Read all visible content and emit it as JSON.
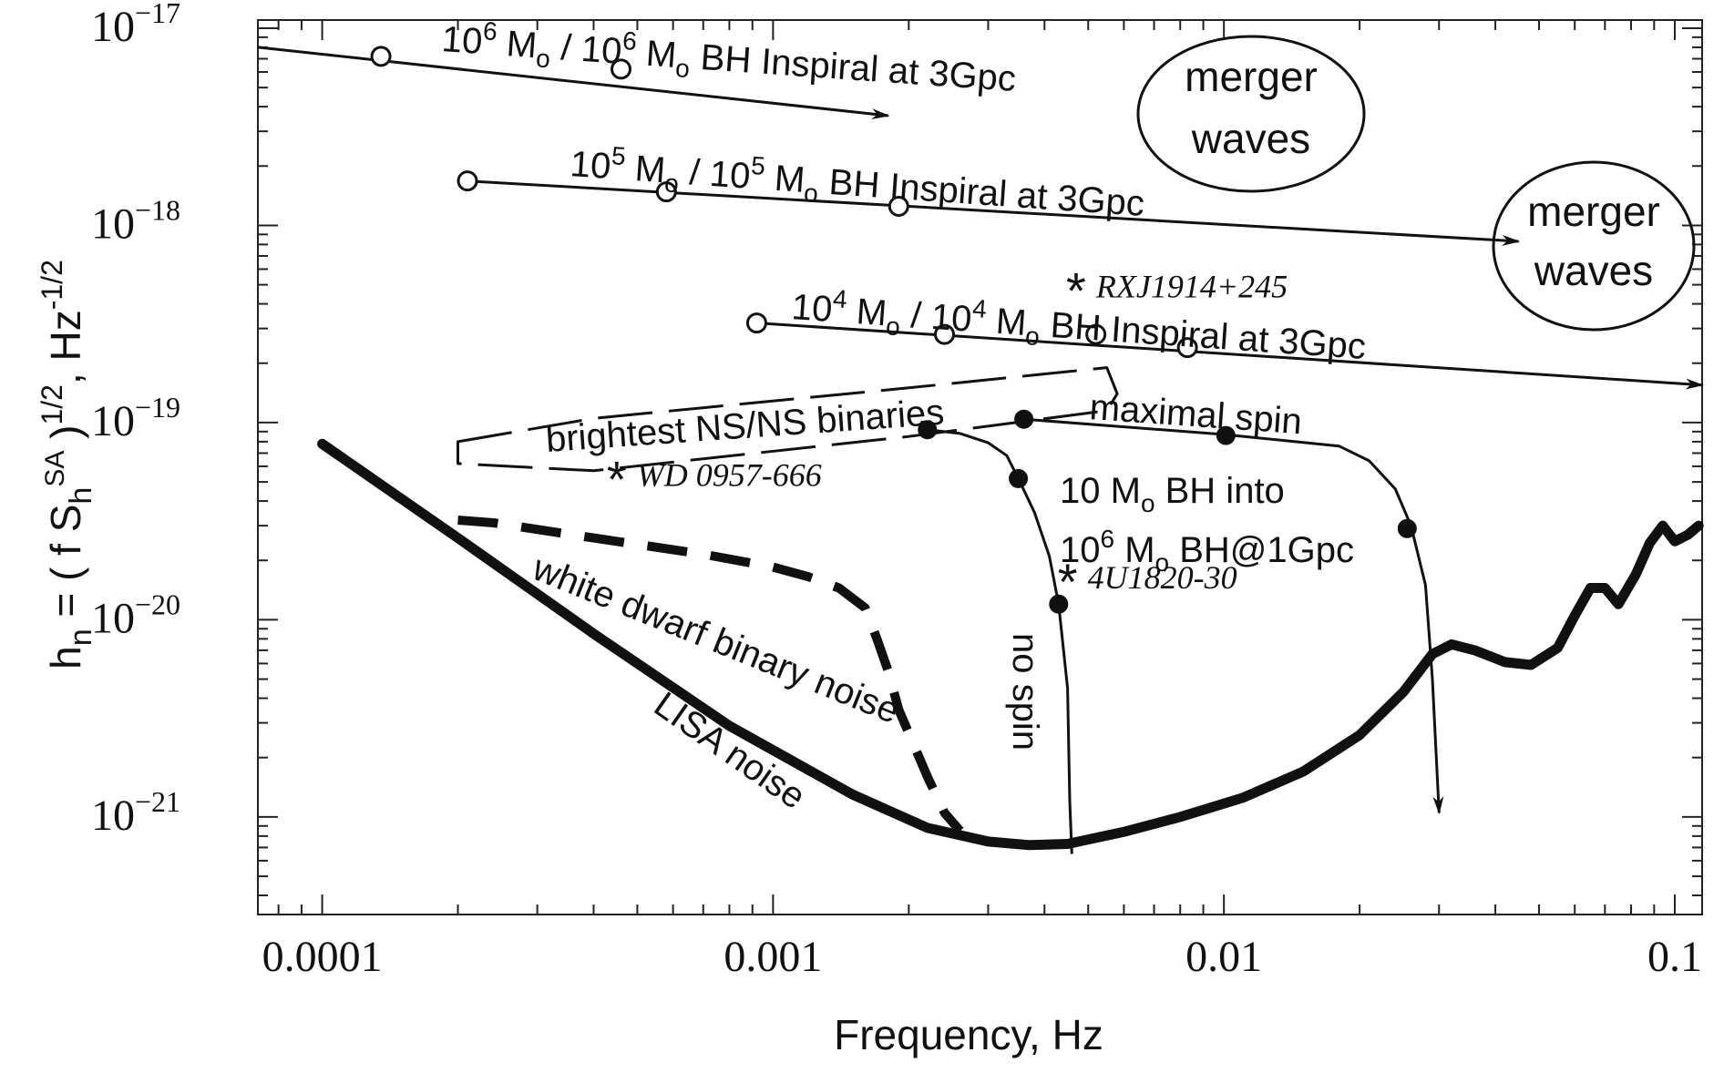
{
  "chart_data": {
    "type": "line",
    "xlabel": "Frequency, Hz",
    "ylabel": "h_n = ( f S_h^SA )^1/2 , Hz^-1/2",
    "ylabel_parts": {
      "main": "h",
      "sub": "n",
      "eq": " = ( f S",
      "s_sub": "h",
      "s_sup": "SA",
      "close": " )",
      "exp": "1/2",
      "comma": ",  Hz",
      "unit_exp": "-1/2"
    },
    "x_scale": "log",
    "y_scale": "log",
    "xlim": [
      7.2e-05,
      0.115
    ],
    "ylim": [
      3.2e-22,
      1.1e-17
    ],
    "x_ticks": [
      {
        "value": 0.0001,
        "label": "0.0001"
      },
      {
        "value": 0.001,
        "label": "0.001"
      },
      {
        "value": 0.01,
        "label": "0.01"
      },
      {
        "value": 0.1,
        "label": "0.1"
      }
    ],
    "y_ticks": [
      {
        "value": 1e-17,
        "base": "10",
        "exp": "−17"
      },
      {
        "value": 1e-18,
        "base": "10",
        "exp": "−18"
      },
      {
        "value": 1e-19,
        "base": "10",
        "exp": "−19"
      },
      {
        "value": 1e-20,
        "base": "10",
        "exp": "−20"
      },
      {
        "value": 1e-21,
        "base": "10",
        "exp": "−21"
      }
    ],
    "grid": false,
    "series": [
      {
        "name": "LISA noise",
        "style": "thick",
        "points": [
          [
            0.0001,
            7.8e-20
          ],
          [
            0.0002,
            2.6e-20
          ],
          [
            0.0004,
            8.5e-21
          ],
          [
            0.0008,
            2.9e-21
          ],
          [
            0.0015,
            1.3e-21
          ],
          [
            0.0022,
            8.8e-22
          ],
          [
            0.003,
            7.5e-22
          ],
          [
            0.0037,
            7.2e-22
          ],
          [
            0.0045,
            7.3e-22
          ],
          [
            0.006,
            8.4e-22
          ],
          [
            0.008,
            1e-21
          ],
          [
            0.011,
            1.25e-21
          ],
          [
            0.015,
            1.7e-21
          ],
          [
            0.02,
            2.6e-21
          ],
          [
            0.025,
            4.3e-21
          ],
          [
            0.029,
            6.7e-21
          ],
          [
            0.032,
            7.5e-21
          ],
          [
            0.036,
            7e-21
          ],
          [
            0.042,
            6.1e-21
          ],
          [
            0.048,
            5.9e-21
          ],
          [
            0.055,
            7.2e-21
          ],
          [
            0.06,
            1.05e-20
          ],
          [
            0.065,
            1.45e-20
          ],
          [
            0.07,
            1.45e-20
          ],
          [
            0.075,
            1.2e-20
          ],
          [
            0.082,
            1.7e-20
          ],
          [
            0.088,
            2.45e-20
          ],
          [
            0.094,
            3e-20
          ],
          [
            0.1,
            2.5e-20
          ],
          [
            0.107,
            2.7e-20
          ],
          [
            0.113,
            3e-20
          ]
        ]
      },
      {
        "name": "white dwarf binary noise",
        "style": "thick-dash",
        "points": [
          [
            0.0002,
            3.2e-20
          ],
          [
            0.00024,
            3.1e-20
          ],
          [
            0.0004,
            2.6e-20
          ],
          [
            0.0007,
            2.15e-20
          ],
          [
            0.001,
            1.85e-20
          ],
          [
            0.0012,
            1.65e-20
          ],
          [
            0.0014,
            1.45e-20
          ],
          [
            0.0016,
            1.15e-20
          ],
          [
            0.0017,
            8e-21
          ],
          [
            0.0018,
            5.5e-21
          ],
          [
            0.0019,
            3.5e-21
          ],
          [
            0.0022,
            1.6e-21
          ],
          [
            0.0024,
            1.05e-21
          ],
          [
            0.0026,
            8.5e-22
          ]
        ]
      },
      {
        "name": "10^6 Mo / 10^6 Mo BH Inspiral at 3Gpc",
        "style": "thin-arrow",
        "points": [
          [
            7.2e-05,
            8e-18
          ],
          [
            0.0018,
            3.6e-18
          ]
        ],
        "markers": [
          [
            0.000135,
            7.2e-18
          ],
          [
            0.00046,
            6.2e-18
          ]
        ]
      },
      {
        "name": "10^5 Mo / 10^5 Mo BH Inspiral at 3Gpc",
        "style": "thin-arrow",
        "points": [
          [
            0.00021,
            1.68e-18
          ],
          [
            0.045,
            8.3e-19
          ]
        ],
        "markers": [
          [
            0.00021,
            1.68e-18
          ],
          [
            0.00058,
            1.48e-18
          ],
          [
            0.0019,
            1.25e-18
          ]
        ]
      },
      {
        "name": "10^4 Mo / 10^4 Mo BH Inspiral at 3Gpc",
        "style": "thin-arrow",
        "points": [
          [
            0.00092,
            3.2e-19
          ],
          [
            0.115,
            1.55e-19
          ]
        ],
        "markers": [
          [
            0.00092,
            3.2e-19
          ],
          [
            0.0024,
            2.8e-19
          ],
          [
            0.0052,
            2.8e-19
          ],
          [
            0.0083,
            2.4e-19
          ]
        ]
      },
      {
        "name": "10 Mo BH into 10^6 Mo BH@1Gpc, no spin",
        "style": "thin",
        "points": [
          [
            0.0022,
            9.2e-20
          ],
          [
            0.0026,
            8.8e-20
          ],
          [
            0.003,
            7.9e-20
          ],
          [
            0.0033,
            6.8e-20
          ],
          [
            0.0035,
            5.2e-20
          ],
          [
            0.0038,
            3.5e-20
          ],
          [
            0.0041,
            2.1e-20
          ],
          [
            0.0043,
            1.2e-20
          ],
          [
            0.0045,
            4.5e-21
          ],
          [
            0.00455,
            1.2e-21
          ],
          [
            0.0046,
            6.5e-22
          ]
        ],
        "markers": [
          [
            0.0022,
            9.2e-20
          ],
          [
            0.0035,
            5.2e-20
          ],
          [
            0.0043,
            1.2e-20
          ]
        ]
      },
      {
        "name": "10 Mo BH into 10^6 Mo BH@1Gpc, maximal spin",
        "style": "thin-arrow",
        "points": [
          [
            0.0036,
            1.04e-19
          ],
          [
            0.01,
            8.7e-20
          ],
          [
            0.018,
            7.6e-20
          ],
          [
            0.021,
            6.4e-20
          ],
          [
            0.024,
            4.6e-20
          ],
          [
            0.026,
            3e-20
          ],
          [
            0.028,
            1.5e-20
          ],
          [
            0.029,
            5e-21
          ],
          [
            0.03,
            1.05e-21
          ]
        ],
        "markers": [
          [
            0.0036,
            1.04e-19
          ],
          [
            0.0101,
            8.6e-20
          ],
          [
            0.0255,
            2.9e-20
          ]
        ]
      },
      {
        "name": "brightest NS/NS binaries",
        "style": "long-dash-loop",
        "points": [
          [
            0.0002,
            8e-20
          ],
          [
            0.0004,
            1.05e-19
          ],
          [
            0.002,
            1.5e-19
          ],
          [
            0.0055,
            1.9e-19
          ],
          [
            0.0058,
            1.4e-19
          ],
          [
            0.0055,
            1.15e-19
          ],
          [
            0.002,
            8.5e-20
          ],
          [
            0.0004,
            5.7e-20
          ],
          [
            0.0002,
            6.2e-20
          ]
        ]
      }
    ],
    "point_sources": [
      {
        "name": "RXJ1914+245",
        "x": 0.0047,
        "y": 4.8e-19
      },
      {
        "name": "WD 0957-666",
        "x": 0.00045,
        "y": 5.3e-20
      },
      {
        "name": "4U1820-30",
        "x": 0.0045,
        "y": 1.6e-20
      }
    ],
    "annotations": {
      "merger_waves_1": {
        "line1": "merger",
        "line2": "waves"
      },
      "merger_waves_2": {
        "line1": "merger",
        "line2": "waves"
      },
      "insp6": {
        "a": "10",
        "a_sup": "6",
        "b": " M",
        "b_sub": "o",
        "c": " / 10",
        "c_sup": "6",
        "d": " M",
        "d_sub": "o",
        "e": " BH Inspiral at 3Gpc"
      },
      "insp5": {
        "a": "10",
        "a_sup": "5",
        "b": " M",
        "b_sub": "o",
        "c": " / 10",
        "c_sup": "5",
        "d": " M",
        "d_sub": "o",
        "e": " BH Inspiral at 3Gpc"
      },
      "insp4": {
        "a": "10",
        "a_sup": "4",
        "b": " M",
        "b_sub": "o",
        "c": " / 10",
        "c_sup": "4",
        "d": " M",
        "d_sub": "o",
        "e": " BH Inspiral at 3Gpc"
      },
      "nsns": "brightest NS/NS binaries",
      "maximal_spin": "maximal spin",
      "no_spin": "no spin",
      "emri_line1": {
        "a": "10 M",
        "a_sub": "o",
        "b": " BH into"
      },
      "emri_line2": {
        "a": "10",
        "a_sup": "6",
        "b": " M",
        "b_sub": "o",
        "c": " BH@1Gpc"
      },
      "wd_noise": "white dwarf binary noise",
      "lisa_noise": "LISA noise",
      "asterisk": "*"
    }
  }
}
